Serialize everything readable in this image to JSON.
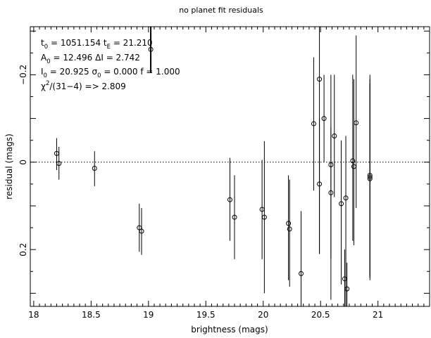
{
  "chart_data": {
    "type": "scatter",
    "title": "no planet fit residuals",
    "xlabel": "brightness (mags)",
    "ylabel": "residual (mags)",
    "xlim": [
      17.97,
      21.45
    ],
    "ylim": [
      0.33,
      -0.31
    ],
    "y_axis_inverted": true,
    "reference_line": {
      "y": 0,
      "style": "dotted"
    },
    "x_ticks": [
      "18",
      "18.5",
      "19",
      "19.5",
      "20",
      "20.5",
      "21"
    ],
    "x_tick_values": [
      18,
      18.5,
      19,
      19.5,
      20,
      20.5,
      21
    ],
    "y_ticks": [
      "−0.2",
      "0",
      "0.2"
    ],
    "y_tick_values": [
      -0.2,
      0,
      0.2
    ],
    "annotations": {
      "line1": {
        "t_sym": "t",
        "t_sub": "0",
        "t_val": " = 1051.154   ",
        "tE_sym": "t",
        "tE_sub": "E",
        "tE_val": " = 21.210"
      },
      "line2": {
        "A_sym": "A",
        "A_sub": "0",
        "A_val": " = 12.496   ΔI = 2.742"
      },
      "line3": {
        "I_sym": "I",
        "I_sub": "0",
        "I_val": " = 20.925   ",
        "sig_sym": "σ",
        "sig_sub": "0",
        "sig_val": " = 0.000  f = 1.000"
      },
      "line4": {
        "chi_sym": "χ",
        "chi_sup": "2",
        "chi_val": "/(31−4) => 2.809"
      }
    },
    "points": [
      {
        "x": 18.2,
        "y": -0.02,
        "ylo": -0.055,
        "yhi": 0.018
      },
      {
        "x": 18.22,
        "y": 0.003,
        "ylo": -0.035,
        "yhi": 0.04
      },
      {
        "x": 18.53,
        "y": 0.014,
        "ylo": -0.025,
        "yhi": 0.055
      },
      {
        "x": 18.92,
        "y": 0.15,
        "ylo": 0.095,
        "yhi": 0.205
      },
      {
        "x": 18.94,
        "y": 0.158,
        "ylo": 0.105,
        "yhi": 0.212
      },
      {
        "x": 19.02,
        "y": -0.258,
        "ylo": -0.33,
        "yhi": -0.205
      },
      {
        "x": 19.71,
        "y": 0.086,
        "ylo": -0.01,
        "yhi": 0.18
      },
      {
        "x": 19.75,
        "y": 0.126,
        "ylo": 0.03,
        "yhi": 0.222
      },
      {
        "x": 19.99,
        "y": 0.108,
        "ylo": -0.005,
        "yhi": 0.222
      },
      {
        "x": 20.01,
        "y": 0.126,
        "ylo": -0.048,
        "yhi": 0.3
      },
      {
        "x": 20.22,
        "y": 0.14,
        "ylo": 0.03,
        "yhi": 0.27
      },
      {
        "x": 20.23,
        "y": 0.153,
        "ylo": 0.04,
        "yhi": 0.285
      },
      {
        "x": 20.33,
        "y": 0.255,
        "ylo": 0.112,
        "yhi": 0.34
      },
      {
        "x": 20.44,
        "y": -0.088,
        "ylo": -0.24,
        "yhi": 0.065
      },
      {
        "x": 20.49,
        "y": -0.19,
        "ylo": -0.31,
        "yhi": 0.21
      },
      {
        "x": 20.49,
        "y": 0.05,
        "ylo": -0.1,
        "yhi": 0.21
      },
      {
        "x": 20.53,
        "y": -0.1,
        "ylo": -0.2,
        "yhi": 0.0
      },
      {
        "x": 20.59,
        "y": 0.006,
        "ylo": -0.2,
        "yhi": 0.315
      },
      {
        "x": 20.59,
        "y": 0.07,
        "ylo": -0.08,
        "yhi": 0.22
      },
      {
        "x": 20.62,
        "y": -0.06,
        "ylo": -0.2,
        "yhi": 0.08
      },
      {
        "x": 20.68,
        "y": 0.095,
        "ylo": -0.05,
        "yhi": 0.28
      },
      {
        "x": 20.71,
        "y": 0.267,
        "ylo": 0.2,
        "yhi": 0.34
      },
      {
        "x": 20.72,
        "y": 0.082,
        "ylo": -0.06,
        "yhi": 0.34
      },
      {
        "x": 20.73,
        "y": 0.29,
        "ylo": 0.23,
        "yhi": 0.34
      },
      {
        "x": 20.78,
        "y": -0.003,
        "ylo": -0.2,
        "yhi": 0.18
      },
      {
        "x": 20.79,
        "y": 0.01,
        "ylo": -0.19,
        "yhi": 0.19
      },
      {
        "x": 20.81,
        "y": -0.09,
        "ylo": -0.29,
        "yhi": 0.105
      },
      {
        "x": 20.93,
        "y": 0.03,
        "ylo": -0.2,
        "yhi": 0.26
      },
      {
        "x": 20.93,
        "y": 0.034,
        "ylo": -0.19,
        "yhi": 0.265
      },
      {
        "x": 20.93,
        "y": 0.038,
        "ylo": -0.18,
        "yhi": 0.27
      }
    ]
  }
}
